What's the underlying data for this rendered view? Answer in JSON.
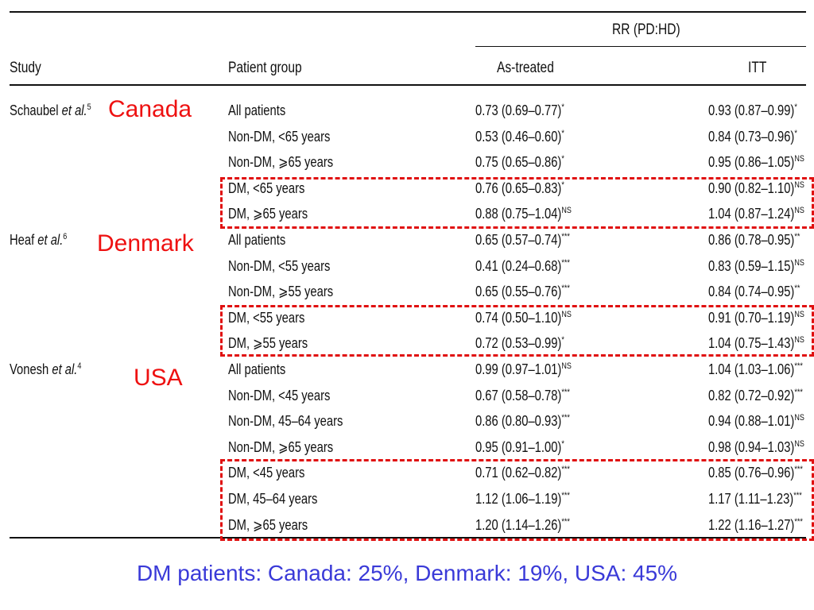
{
  "header": {
    "rr_group": "RR (PD:HD)",
    "study": "Study",
    "patient_group": "Patient group",
    "as_treated": "As-treated",
    "itt": "ITT"
  },
  "studies": [
    {
      "author": "Schaubel",
      "etal": "et al.",
      "ref": "5",
      "country": "Canada",
      "rows": [
        {
          "group": "All patients",
          "as_treated": "0.73 (0.69–0.77)",
          "as_sig": "*",
          "itt": "0.93 (0.87–0.99)",
          "itt_sig": "*"
        },
        {
          "group": "Non-DM, <65 years",
          "as_treated": "0.53 (0.46–0.60)",
          "as_sig": "*",
          "itt": "0.84 (0.73–0.96)",
          "itt_sig": "*"
        },
        {
          "group": "Non-DM, ⩾65 years",
          "as_treated": "0.75 (0.65–0.86)",
          "as_sig": "*",
          "itt": "0.95 (0.86–1.05)",
          "itt_sig": "NS"
        },
        {
          "group": "DM, <65 years",
          "as_treated": "0.76 (0.65–0.83)",
          "as_sig": "*",
          "itt": "0.90 (0.82–1.10)",
          "itt_sig": "NS"
        },
        {
          "group": "DM, ⩾65 years",
          "as_treated": "0.88 (0.75–1.04)",
          "as_sig": "NS",
          "itt": "1.04 (0.87–1.24)",
          "itt_sig": "NS"
        }
      ]
    },
    {
      "author": "Heaf",
      "etal": "et al.",
      "ref": "6",
      "country": "Denmark",
      "rows": [
        {
          "group": "All patients",
          "as_treated": "0.65 (0.57–0.74)",
          "as_sig": "***",
          "itt": "0.86 (0.78–0.95)",
          "itt_sig": "**"
        },
        {
          "group": "Non-DM, <55 years",
          "as_treated": "0.41 (0.24–0.68)",
          "as_sig": "***",
          "itt": "0.83 (0.59–1.15)",
          "itt_sig": "NS"
        },
        {
          "group": "Non-DM, ⩾55 years",
          "as_treated": "0.65 (0.55–0.76)",
          "as_sig": "***",
          "itt": "0.84 (0.74–0.95)",
          "itt_sig": "**"
        },
        {
          "group": "DM, <55 years",
          "as_treated": "0.74 (0.50–1.10)",
          "as_sig": "NS",
          "itt": "0.91 (0.70–1.19)",
          "itt_sig": "NS"
        },
        {
          "group": "DM, ⩾55 years",
          "as_treated": "0.72 (0.53–0.99)",
          "as_sig": "*",
          "itt": "1.04 (0.75–1.43)",
          "itt_sig": "NS"
        }
      ]
    },
    {
      "author": "Vonesh",
      "etal": "et al.",
      "ref": "4",
      "country": "USA",
      "rows": [
        {
          "group": "All patients",
          "as_treated": "0.99 (0.97–1.01)",
          "as_sig": "NS",
          "itt": "1.04 (1.03–1.06)",
          "itt_sig": "***"
        },
        {
          "group": "Non-DM, <45 years",
          "as_treated": "0.67 (0.58–0.78)",
          "as_sig": "***",
          "itt": "0.82 (0.72–0.92)",
          "itt_sig": "***"
        },
        {
          "group": "Non-DM, 45–64 years",
          "as_treated": "0.86 (0.80–0.93)",
          "as_sig": "***",
          "itt": "0.94 (0.88–1.01)",
          "itt_sig": "NS"
        },
        {
          "group": "Non-DM, ⩾65 years",
          "as_treated": "0.95 (0.91–1.00)",
          "as_sig": "*",
          "itt": "0.98 (0.94–1.03)",
          "itt_sig": "NS"
        },
        {
          "group": "DM, <45 years",
          "as_treated": "0.71 (0.62–0.82)",
          "as_sig": "***",
          "itt": "0.85 (0.76–0.96)",
          "itt_sig": "***"
        },
        {
          "group": "DM, 45–64 years",
          "as_treated": "1.12 (1.06–1.19)",
          "as_sig": "***",
          "itt": "1.17 (1.11–1.23)",
          "itt_sig": "***"
        },
        {
          "group": "DM, ⩾65 years",
          "as_treated": "1.20 (1.14–1.26)",
          "as_sig": "***",
          "itt": "1.22 (1.16–1.27)",
          "itt_sig": "***"
        }
      ]
    }
  ],
  "footer": "DM patients: Canada: 25%, Denmark: 19%, USA: 45%",
  "colors": {
    "highlight": "#e01010",
    "country": "#ee1111",
    "footer": "#3a3ad8"
  }
}
